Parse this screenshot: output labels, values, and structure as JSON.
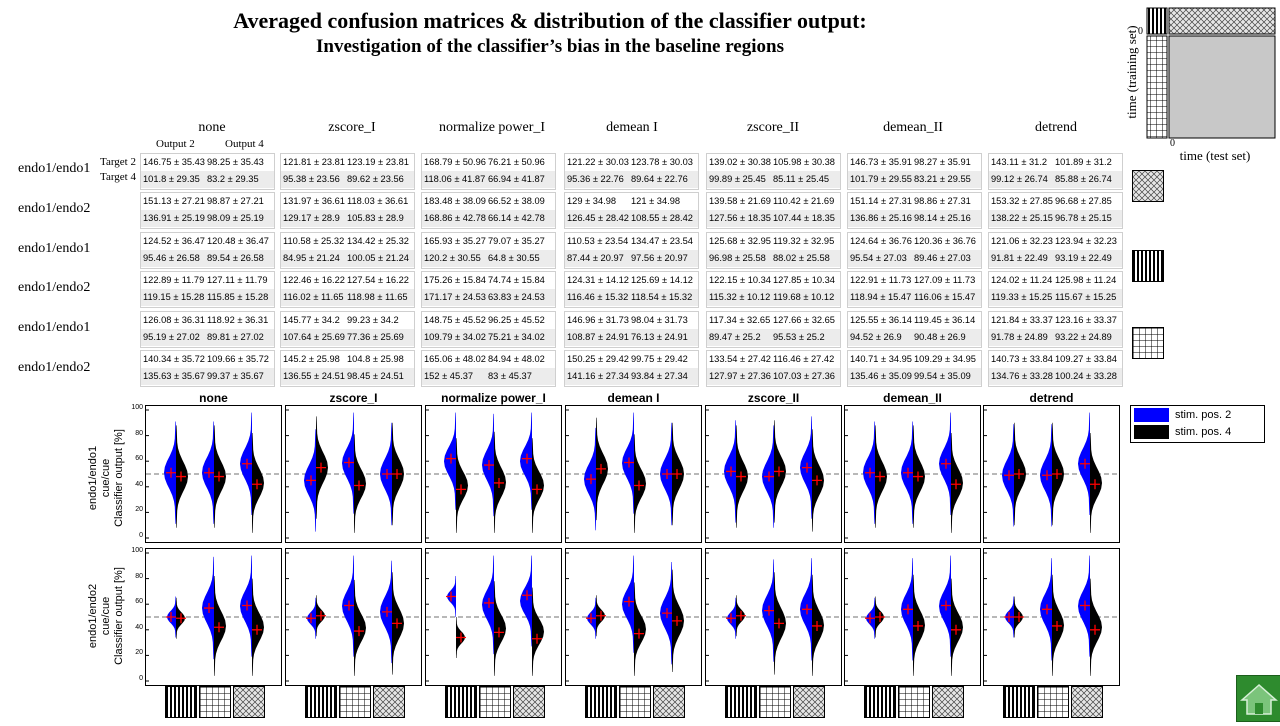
{
  "header": {
    "title": "Averaged confusion matrices & distribution of the classifier output:",
    "subtitle": "Investigation  of the classifier’s  bias in the baseline regions"
  },
  "columns": [
    "none",
    "zscore_I",
    "normalize power_I",
    "demean I",
    "zscore_II",
    "demean_II",
    "detrend"
  ],
  "output_labels": [
    "Output 2",
    "Output 4"
  ],
  "target_labels": [
    "Target 2",
    "Target 4"
  ],
  "matrix_row_labels": [
    "endo1/endo1",
    "endo1/endo2",
    "endo1/endo1",
    "endo1/endo2",
    "endo1/endo1",
    "endo1/endo2"
  ],
  "matrices": [
    [
      [
        [
          "146.75 ± 35.43",
          "98.25 ± 35.43"
        ],
        [
          "101.8 ± 29.35",
          "83.2 ± 29.35"
        ]
      ],
      [
        [
          "121.81 ± 23.81",
          "123.19 ± 23.81"
        ],
        [
          "95.38 ± 23.56",
          "89.62 ± 23.56"
        ]
      ],
      [
        [
          "168.79 ± 50.96",
          "76.21 ± 50.96"
        ],
        [
          "118.06 ± 41.87",
          "66.94 ± 41.87"
        ]
      ],
      [
        [
          "121.22 ± 30.03",
          "123.78 ± 30.03"
        ],
        [
          "95.36 ± 22.76",
          "89.64 ± 22.76"
        ]
      ],
      [
        [
          "139.02 ± 30.38",
          "105.98 ± 30.38"
        ],
        [
          "99.89 ± 25.45",
          "85.11 ± 25.45"
        ]
      ],
      [
        [
          "146.73 ± 35.91",
          "98.27 ± 35.91"
        ],
        [
          "101.79 ± 29.55",
          "83.21 ± 29.55"
        ]
      ],
      [
        [
          "143.11 ± 31.2",
          "101.89 ± 31.2"
        ],
        [
          "99.12 ± 26.74",
          "85.88 ± 26.74"
        ]
      ]
    ],
    [
      [
        [
          "151.13 ± 27.21",
          "98.87 ± 27.21"
        ],
        [
          "136.91 ± 25.19",
          "98.09 ± 25.19"
        ]
      ],
      [
        [
          "131.97 ± 36.61",
          "118.03 ± 36.61"
        ],
        [
          "129.17 ± 28.9",
          "105.83 ± 28.9"
        ]
      ],
      [
        [
          "183.48 ± 38.09",
          "66.52 ± 38.09"
        ],
        [
          "168.86 ± 42.78",
          "66.14 ± 42.78"
        ]
      ],
      [
        [
          "129 ± 34.98",
          "121 ± 34.98"
        ],
        [
          "126.45 ± 28.42",
          "108.55 ± 28.42"
        ]
      ],
      [
        [
          "139.58 ± 21.69",
          "110.42 ± 21.69"
        ],
        [
          "127.56 ± 18.35",
          "107.44 ± 18.35"
        ]
      ],
      [
        [
          "151.14 ± 27.31",
          "98.86 ± 27.31"
        ],
        [
          "136.86 ± 25.16",
          "98.14 ± 25.16"
        ]
      ],
      [
        [
          "153.32 ± 27.85",
          "96.68 ± 27.85"
        ],
        [
          "138.22 ± 25.15",
          "96.78 ± 25.15"
        ]
      ]
    ],
    [
      [
        [
          "124.52 ± 36.47",
          "120.48 ± 36.47"
        ],
        [
          "95.46 ± 26.58",
          "89.54 ± 26.58"
        ]
      ],
      [
        [
          "110.58 ± 25.32",
          "134.42 ± 25.32"
        ],
        [
          "84.95 ± 21.24",
          "100.05 ± 21.24"
        ]
      ],
      [
        [
          "165.93 ± 35.27",
          "79.07 ± 35.27"
        ],
        [
          "120.2 ± 30.55",
          "64.8 ± 30.55"
        ]
      ],
      [
        [
          "110.53 ± 23.54",
          "134.47 ± 23.54"
        ],
        [
          "87.44 ± 20.97",
          "97.56 ± 20.97"
        ]
      ],
      [
        [
          "125.68 ± 32.95",
          "119.32 ± 32.95"
        ],
        [
          "96.98 ± 25.58",
          "88.02 ± 25.58"
        ]
      ],
      [
        [
          "124.64 ± 36.76",
          "120.36 ± 36.76"
        ],
        [
          "95.54 ± 27.03",
          "89.46 ± 27.03"
        ]
      ],
      [
        [
          "121.06 ± 32.23",
          "123.94 ± 32.23"
        ],
        [
          "91.81 ± 22.49",
          "93.19 ± 22.49"
        ]
      ]
    ],
    [
      [
        [
          "122.89 ± 11.79",
          "127.11 ± 11.79"
        ],
        [
          "119.15 ± 15.28",
          "115.85 ± 15.28"
        ]
      ],
      [
        [
          "122.46 ± 16.22",
          "127.54 ± 16.22"
        ],
        [
          "116.02 ± 11.65",
          "118.98 ± 11.65"
        ]
      ],
      [
        [
          "175.26 ± 15.84",
          "74.74 ± 15.84"
        ],
        [
          "171.17 ± 24.53",
          "63.83 ± 24.53"
        ]
      ],
      [
        [
          "124.31 ± 14.12",
          "125.69 ± 14.12"
        ],
        [
          "116.46 ± 15.32",
          "118.54 ± 15.32"
        ]
      ],
      [
        [
          "122.15 ± 10.34",
          "127.85 ± 10.34"
        ],
        [
          "115.32 ± 10.12",
          "119.68 ± 10.12"
        ]
      ],
      [
        [
          "122.91 ± 11.73",
          "127.09 ± 11.73"
        ],
        [
          "118.94 ± 15.47",
          "116.06 ± 15.47"
        ]
      ],
      [
        [
          "124.02 ± 11.24",
          "125.98 ± 11.24"
        ],
        [
          "119.33 ± 15.25",
          "115.67 ± 15.25"
        ]
      ]
    ],
    [
      [
        [
          "126.08 ± 36.31",
          "118.92 ± 36.31"
        ],
        [
          "95.19 ± 27.02",
          "89.81 ± 27.02"
        ]
      ],
      [
        [
          "145.77 ± 34.2",
          "99.23 ± 34.2"
        ],
        [
          "107.64 ± 25.69",
          "77.36 ± 25.69"
        ]
      ],
      [
        [
          "148.75 ± 45.52",
          "96.25 ± 45.52"
        ],
        [
          "109.79 ± 34.02",
          "75.21 ± 34.02"
        ]
      ],
      [
        [
          "146.96 ± 31.73",
          "98.04 ± 31.73"
        ],
        [
          "108.87 ± 24.91",
          "76.13 ± 24.91"
        ]
      ],
      [
        [
          "117.34 ± 32.65",
          "127.66 ± 32.65"
        ],
        [
          "89.47 ± 25.2",
          "95.53 ± 25.2"
        ]
      ],
      [
        [
          "125.55 ± 36.14",
          "119.45 ± 36.14"
        ],
        [
          "94.52 ± 26.9",
          "90.48 ± 26.9"
        ]
      ],
      [
        [
          "121.84 ± 33.37",
          "123.16 ± 33.37"
        ],
        [
          "91.78 ± 24.89",
          "93.22 ± 24.89"
        ]
      ]
    ],
    [
      [
        [
          "140.34 ± 35.72",
          "109.66 ± 35.72"
        ],
        [
          "135.63 ± 35.67",
          "99.37 ± 35.67"
        ]
      ],
      [
        [
          "145.2 ± 25.98",
          "104.8 ± 25.98"
        ],
        [
          "136.55 ± 24.51",
          "98.45 ± 24.51"
        ]
      ],
      [
        [
          "165.06 ± 48.02",
          "84.94 ± 48.02"
        ],
        [
          "152 ± 45.37",
          "83 ± 45.37"
        ]
      ],
      [
        [
          "150.25 ± 29.42",
          "99.75 ± 29.42"
        ],
        [
          "141.16 ± 27.34",
          "93.84 ± 27.34"
        ]
      ],
      [
        [
          "133.54 ± 27.42",
          "116.46 ± 27.42"
        ],
        [
          "127.97 ± 27.36",
          "107.03 ± 27.36"
        ]
      ],
      [
        [
          "140.71 ± 34.95",
          "109.29 ± 34.95"
        ],
        [
          "135.46 ± 35.09",
          "99.54 ± 35.09"
        ]
      ],
      [
        [
          "140.73 ± 33.84",
          "109.27 ± 33.84"
        ],
        [
          "134.76 ± 33.28",
          "100.24 ± 33.28"
        ]
      ]
    ]
  ],
  "corner_diagram": {
    "ylabel": "time  (training  set)",
    "xlabel": "time  (test set)",
    "y_tick": "0",
    "x_tick": "0"
  },
  "row_pattern_icons": [
    "crosshatch-pattern-icon",
    "vertical-stripes-pattern-icon",
    "grid-pattern-icon"
  ],
  "bottom_pattern_icons": [
    "vertical-stripes-pattern-icon",
    "grid-pattern-icon",
    "crosshatch-pattern-icon"
  ],
  "legend": [
    {
      "label": "stim. pos. 2",
      "color": "#0000ff"
    },
    {
      "label": "stim. pos. 4",
      "color": "#000000"
    }
  ],
  "plot_ylabels": [
    [
      "endo1/endo1",
      "cue/cue",
      "Classifier output [%]"
    ],
    [
      "endo1/endo2",
      "cue/cue",
      "Classifier output [%]"
    ]
  ],
  "colors": {
    "stim2": "#0000ff",
    "stim4": "#000000",
    "median_marker": "#ff0000",
    "chance_line": "#707070",
    "home_button": "#2e8b2e"
  },
  "chart_data": {
    "type": "violin",
    "ylim": [
      0,
      100
    ],
    "yticks": [
      0,
      20,
      40,
      60,
      80,
      100
    ],
    "chance_level": 50,
    "groups": [
      "vertical-stripes",
      "grid",
      "crosshatch"
    ],
    "series_names": [
      "stim. pos. 2",
      "stim. pos. 4"
    ],
    "panels": [
      {
        "row": "endo1/endo1",
        "col": "none",
        "medians": [
          [
            51,
            48
          ],
          [
            51,
            48
          ],
          [
            58,
            42
          ]
        ]
      },
      {
        "row": "endo1/endo1",
        "col": "zscore_I",
        "medians": [
          [
            45,
            55
          ],
          [
            59,
            41
          ],
          [
            50,
            50
          ]
        ]
      },
      {
        "row": "endo1/endo1",
        "col": "normalize power_I",
        "medians": [
          [
            62,
            38
          ],
          [
            57,
            43
          ],
          [
            62,
            38
          ]
        ]
      },
      {
        "row": "endo1/endo1",
        "col": "demean_I",
        "medians": [
          [
            46,
            54
          ],
          [
            59,
            41
          ],
          [
            50,
            50
          ]
        ]
      },
      {
        "row": "endo1/endo1",
        "col": "zscore_II",
        "medians": [
          [
            52,
            48
          ],
          [
            48,
            52
          ],
          [
            55,
            45
          ]
        ]
      },
      {
        "row": "endo1/endo1",
        "col": "demean_II",
        "medians": [
          [
            51,
            48
          ],
          [
            51,
            48
          ],
          [
            58,
            42
          ]
        ]
      },
      {
        "row": "endo1/endo1",
        "col": "detrend",
        "medians": [
          [
            49,
            50
          ],
          [
            49,
            50
          ],
          [
            58,
            42
          ]
        ]
      },
      {
        "row": "endo1/endo2",
        "col": "none",
        "medians": [
          [
            50,
            49
          ],
          [
            57,
            42
          ],
          [
            59,
            40
          ]
        ]
      },
      {
        "row": "endo1/endo2",
        "col": "zscore_I",
        "medians": [
          [
            49,
            51
          ],
          [
            59,
            39
          ],
          [
            54,
            45
          ]
        ]
      },
      {
        "row": "endo1/endo2",
        "col": "normalize power_I",
        "medians": [
          [
            66,
            34
          ],
          [
            61,
            38
          ],
          [
            67,
            33
          ]
        ]
      },
      {
        "row": "endo1/endo2",
        "col": "demean_I",
        "medians": [
          [
            49,
            51
          ],
          [
            62,
            37
          ],
          [
            53,
            47
          ]
        ]
      },
      {
        "row": "endo1/endo2",
        "col": "zscore_II",
        "medians": [
          [
            49,
            51
          ],
          [
            55,
            45
          ],
          [
            56,
            43
          ]
        ]
      },
      {
        "row": "endo1/endo2",
        "col": "demean_II",
        "medians": [
          [
            49,
            50
          ],
          [
            56,
            43
          ],
          [
            59,
            40
          ]
        ]
      },
      {
        "row": "endo1/endo2",
        "col": "detrend",
        "medians": [
          [
            50,
            50
          ],
          [
            56,
            43
          ],
          [
            59,
            40
          ]
        ]
      }
    ]
  }
}
